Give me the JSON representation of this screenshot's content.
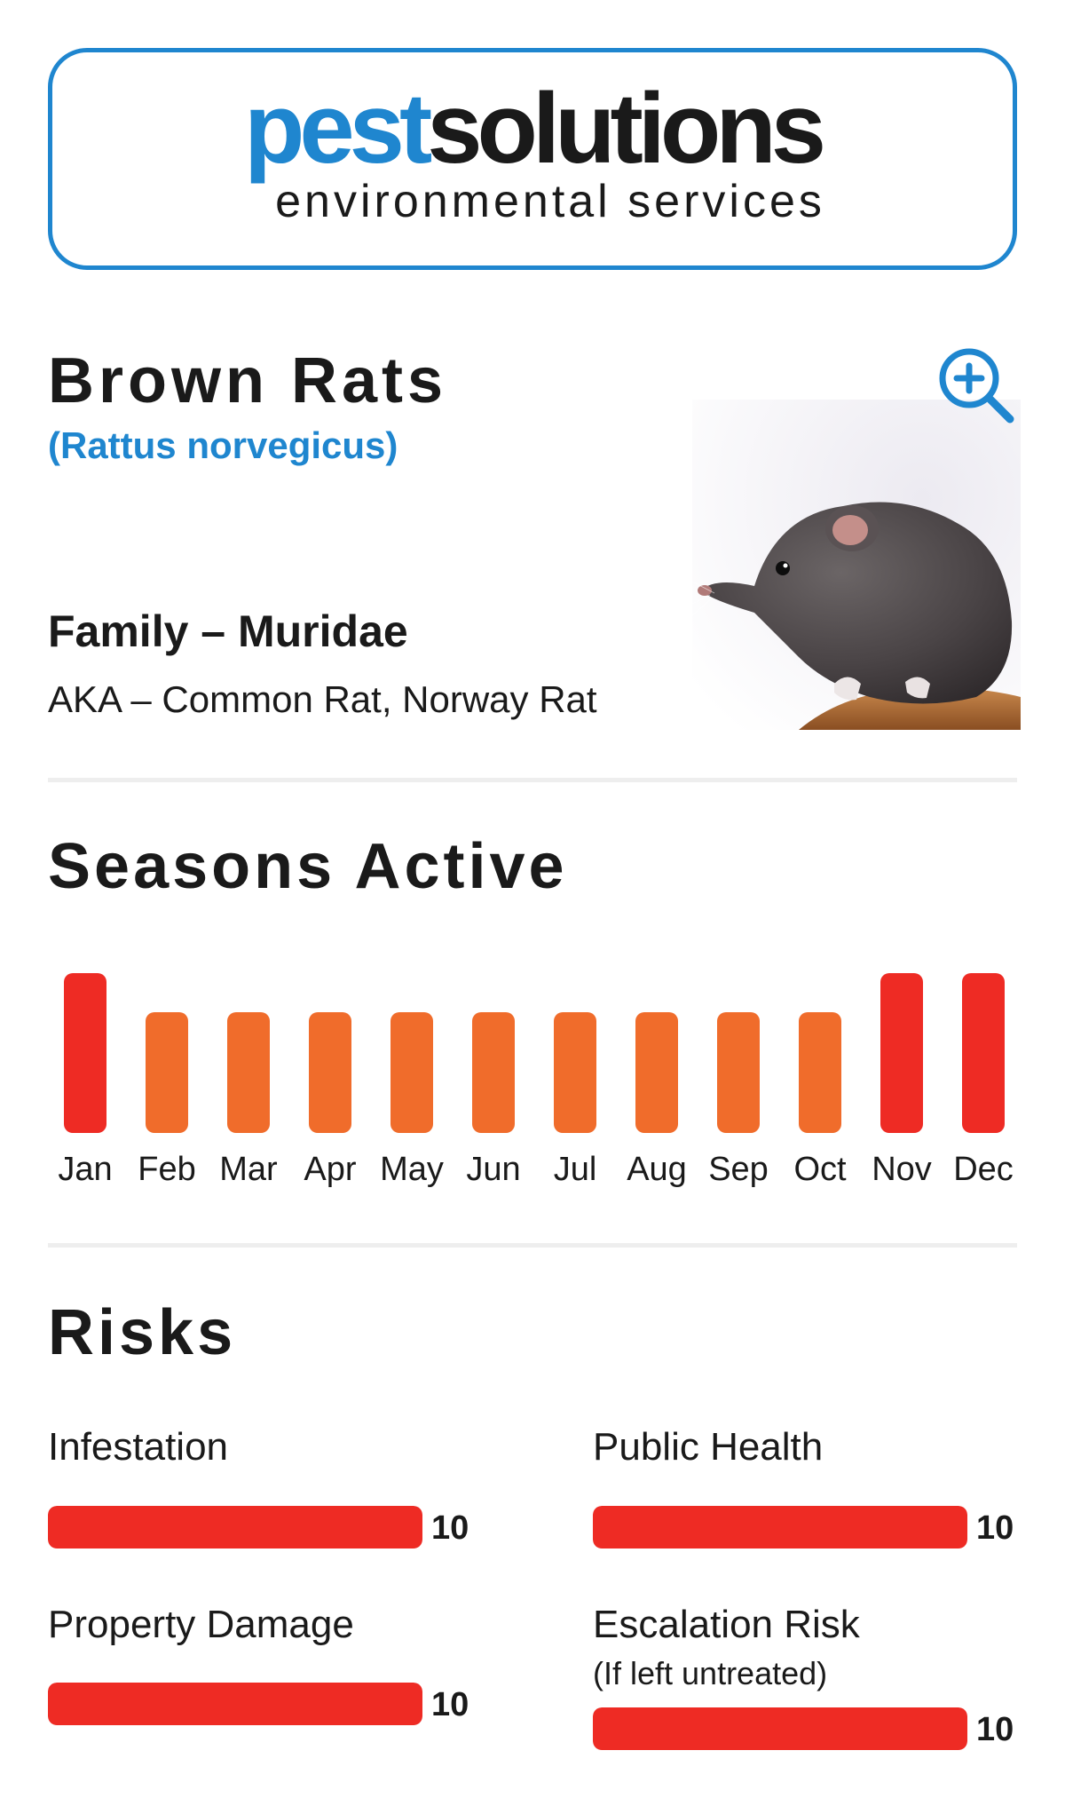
{
  "logo": {
    "brand_part1": "pest",
    "brand_part2": "solutions",
    "tagline": "environmental services"
  },
  "pest": {
    "name": "Brown Rats",
    "scientific_name": "(Rattus norvegicus)",
    "family": "Family – Muridae",
    "aka": "AKA – Common Rat, Norway Rat",
    "zoom_icon": "zoom-in-icon",
    "image": "brown-rat-photo"
  },
  "seasons": {
    "title": "Seasons Active",
    "high_color": "#ee2b24",
    "moderate_color": "#f06c2b"
  },
  "chart_data": {
    "type": "bar",
    "categories": [
      "Jan",
      "Feb",
      "Mar",
      "Apr",
      "May",
      "Jun",
      "Jul",
      "Aug",
      "Sep",
      "Oct",
      "Nov",
      "Dec"
    ],
    "values": [
      2,
      1,
      1,
      1,
      1,
      1,
      1,
      1,
      1,
      1,
      2,
      2
    ],
    "ylim": [
      0,
      2
    ]
  },
  "risks": {
    "title": "Risks",
    "bar_color": "#ee2b24",
    "items": [
      {
        "label": "Infestation",
        "value": 10,
        "max": 10
      },
      {
        "label": "Public Health",
        "value": 10,
        "max": 10
      },
      {
        "label": "Property Damage",
        "value": 10,
        "max": 10
      },
      {
        "label": "Escalation Risk",
        "note": "(If left untreated)",
        "value": 10,
        "max": 10
      }
    ]
  }
}
